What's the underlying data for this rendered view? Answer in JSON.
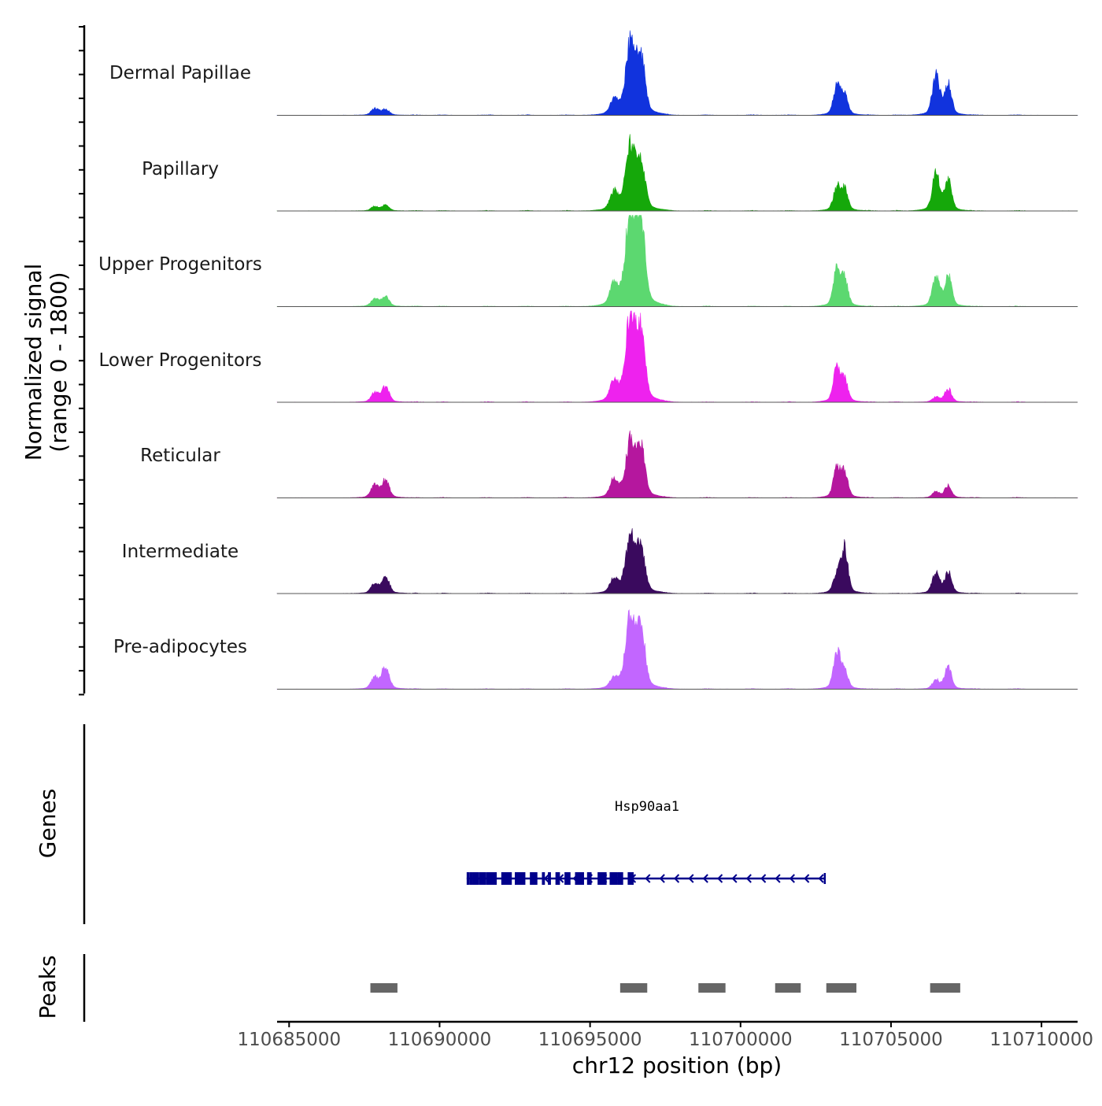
{
  "chart_data": {
    "type": "area",
    "chromosome": "chr12",
    "xlim": [
      110684600,
      110711200
    ],
    "ylim": [
      0,
      1800
    ],
    "ylabel_line1": "Normalized signal",
    "ylabel_line2": "(range 0 - 1800)",
    "xlabel": "chr12 position (bp)",
    "xticks": [
      110685000,
      110690000,
      110695000,
      110700000,
      110705000,
      110710000
    ],
    "xtick_labels": [
      "110685000",
      "110690000",
      "110695000",
      "110700000",
      "110705000",
      "110710000"
    ],
    "peak_shape_half_width_bp": [
      120,
      120,
      130,
      160,
      130,
      110,
      110,
      120,
      110,
      110,
      110,
      120,
      120
    ],
    "peak_positions_bp": [
      110687850,
      110688200,
      110695800,
      110696350,
      110696700,
      110703200,
      110703450,
      110706500,
      110706900,
      110688050,
      110696250,
      110705950,
      110706250
    ],
    "series": [
      {
        "name": "Dermal Papillae",
        "color": "#1133dd",
        "peaks": [
          [
            110687850,
            120
          ],
          [
            110688200,
            110
          ],
          [
            110695800,
            250
          ],
          [
            110696350,
            1300
          ],
          [
            110696700,
            950
          ],
          [
            110703200,
            520
          ],
          [
            110703450,
            380
          ],
          [
            110706500,
            720
          ],
          [
            110706900,
            550
          ]
        ]
      },
      {
        "name": "Papillary",
        "color": "#15a80a",
        "peaks": [
          [
            110687850,
            80
          ],
          [
            110688200,
            100
          ],
          [
            110695800,
            320
          ],
          [
            110696350,
            1150
          ],
          [
            110696700,
            820
          ],
          [
            110703200,
            420
          ],
          [
            110703450,
            380
          ],
          [
            110706500,
            700
          ],
          [
            110706900,
            540
          ]
        ]
      },
      {
        "name": "Upper Progenitors",
        "color": "#5cd870",
        "peaks": [
          [
            110687850,
            150
          ],
          [
            110688200,
            180
          ],
          [
            110695800,
            380
          ],
          [
            110696350,
            1800
          ],
          [
            110696700,
            1450
          ],
          [
            110703200,
            650
          ],
          [
            110703450,
            500
          ],
          [
            110706500,
            560
          ],
          [
            110706900,
            560
          ]
        ]
      },
      {
        "name": "Lower Progenitors",
        "color": "#ee22ee",
        "peaks": [
          [
            110687850,
            170
          ],
          [
            110688200,
            270
          ],
          [
            110695800,
            370
          ],
          [
            110696350,
            1550
          ],
          [
            110696700,
            1150
          ],
          [
            110703200,
            620
          ],
          [
            110703450,
            400
          ],
          [
            110706500,
            90
          ],
          [
            110706900,
            240
          ]
        ]
      },
      {
        "name": "Reticular",
        "color": "#b5179e",
        "peaks": [
          [
            110687850,
            230
          ],
          [
            110688200,
            320
          ],
          [
            110695800,
            320
          ],
          [
            110696350,
            1000
          ],
          [
            110696700,
            820
          ],
          [
            110703200,
            520
          ],
          [
            110703450,
            450
          ],
          [
            110706500,
            110
          ],
          [
            110706900,
            220
          ]
        ]
      },
      {
        "name": "Intermediate",
        "color": "#3a0a5e",
        "peaks": [
          [
            110687850,
            170
          ],
          [
            110688200,
            320
          ],
          [
            110695800,
            260
          ],
          [
            110696350,
            1000
          ],
          [
            110696700,
            750
          ],
          [
            110703200,
            320
          ],
          [
            110703450,
            820
          ],
          [
            110706500,
            380
          ],
          [
            110706900,
            380
          ]
        ]
      },
      {
        "name": "Pre-adipocytes",
        "color": "#c266ff",
        "peaks": [
          [
            110687850,
            200
          ],
          [
            110688200,
            420
          ],
          [
            110695800,
            180
          ],
          [
            110696350,
            1300
          ],
          [
            110696700,
            1000
          ],
          [
            110703200,
            680
          ],
          [
            110703450,
            320
          ],
          [
            110706500,
            160
          ],
          [
            110706900,
            420
          ]
        ]
      }
    ],
    "genes": {
      "title": "Genes",
      "color": "#00008b",
      "name": "Hsp90aa1",
      "start": 110690900,
      "end": 110702800,
      "strand": "-",
      "exons": [
        [
          110690900,
          110691000
        ],
        [
          110691000,
          110691100
        ],
        [
          110691100,
          110691300
        ],
        [
          110691300,
          110691550
        ],
        [
          110691550,
          110691900
        ],
        [
          110692050,
          110692400
        ],
        [
          110692500,
          110692850
        ],
        [
          110693000,
          110693250
        ],
        [
          110693400,
          110693500
        ],
        [
          110693600,
          110693700
        ],
        [
          110693850,
          110694000
        ],
        [
          110694150,
          110694350
        ],
        [
          110694500,
          110694800
        ],
        [
          110694900,
          110695050
        ],
        [
          110695250,
          110695550
        ],
        [
          110695650,
          110695900
        ],
        [
          110695900,
          110696100
        ],
        [
          110696250,
          110696450
        ]
      ]
    },
    "peaks": {
      "title": "Peaks",
      "color": "#666666",
      "regions": [
        [
          110687700,
          110688600
        ],
        [
          110696000,
          110696900
        ],
        [
          110698600,
          110699500
        ],
        [
          110701150,
          110702000
        ],
        [
          110702850,
          110703850
        ],
        [
          110706300,
          110707300
        ]
      ]
    }
  }
}
